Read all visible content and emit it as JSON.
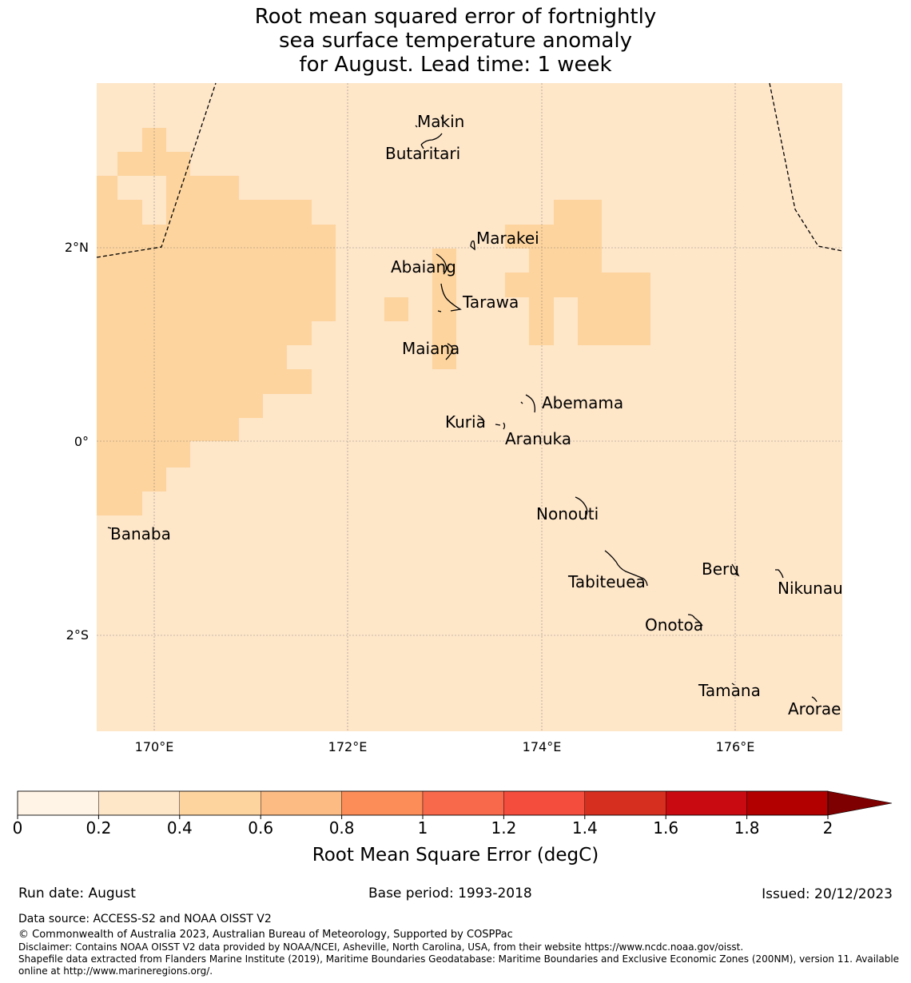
{
  "title": {
    "line1": "Root mean squared error of fortnightly",
    "line2": "sea surface temperature anomaly",
    "line3": "for August. Lead time: 1 week"
  },
  "map": {
    "lon_ticks": [
      "170°E",
      "172°E",
      "174°E",
      "176°E"
    ],
    "lat_ticks": [
      "2°N",
      "0°",
      "2°S"
    ],
    "background_color": "#fee6c9",
    "shaded_color": "#fdd49e",
    "islands": [
      {
        "name": "Makin"
      },
      {
        "name": "Butaritari"
      },
      {
        "name": "Marakei"
      },
      {
        "name": "Abaiang"
      },
      {
        "name": "Tarawa"
      },
      {
        "name": "Maiana"
      },
      {
        "name": "Abemama"
      },
      {
        "name": "Kuria"
      },
      {
        "name": "Aranuka"
      },
      {
        "name": "Nonouti"
      },
      {
        "name": "Banaba"
      },
      {
        "name": "Beru"
      },
      {
        "name": "Tabiteuea"
      },
      {
        "name": "Nikunau"
      },
      {
        "name": "Onotoa"
      },
      {
        "name": "Tamana"
      },
      {
        "name": "Arorae"
      }
    ]
  },
  "colorbar": {
    "ticks": [
      "0",
      "0.2",
      "0.4",
      "0.6",
      "0.8",
      "1",
      "1.2",
      "1.4",
      "1.6",
      "1.8",
      "2"
    ],
    "colors": [
      "#fff4e5",
      "#fee6c9",
      "#fdd49e",
      "#fdbb84",
      "#fc8d59",
      "#f8694c",
      "#f44d3d",
      "#d62f1f",
      "#c90b11",
      "#b20000"
    ],
    "extend_color": "#7f0000",
    "label": "Root Mean Square Error (degC)"
  },
  "footer": {
    "run_date": "Run date: August",
    "base_period": "Base period: 1993-2018",
    "issued": "Issued: 20/12/2023",
    "data_source": "Data source: ACCESS-S2 and NOAA OISST V2",
    "copyright": "© Commonwealth of Australia 2023, Australian Bureau of Meteorology, Supported by COSPPac",
    "disclaimer": "Disclaimer: Contains NOAA OISST V2 data provided by NOAA/NCEI, Asheville, North Carolina, USA, from their website https://www.ncdc.noaa.gov/oisst.",
    "shapefile1": "Shapefile data extracted from Flanders Marine Institute (2019), Maritime Boundaries Geodatabase: Maritime Boundaries and Exclusive Economic Zones (200NM), version 11. Available",
    "shapefile2": "online at http://www.marineregions.org/."
  }
}
